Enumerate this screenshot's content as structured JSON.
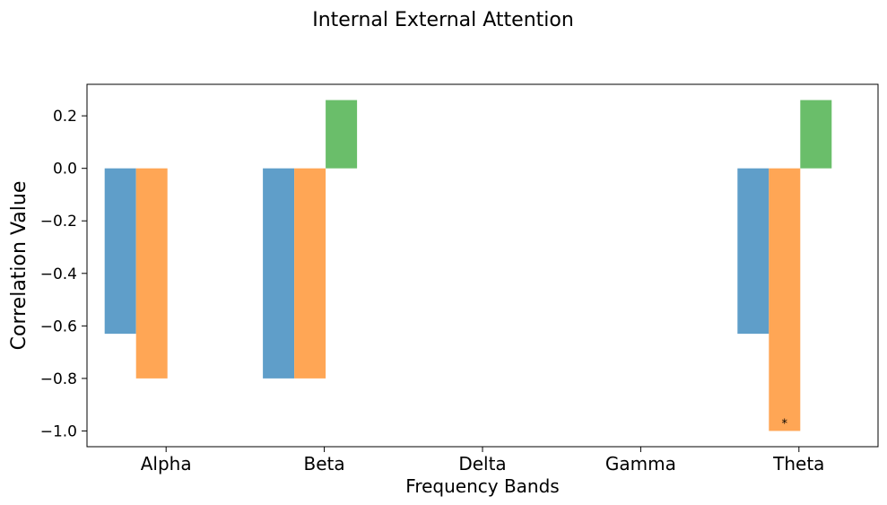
{
  "chart_data": {
    "type": "bar",
    "title": "Internal External Attention",
    "xlabel": "Frequency Bands",
    "ylabel": "Correlation Value",
    "categories": [
      "Alpha",
      "Beta",
      "Delta",
      "Gamma",
      "Theta"
    ],
    "ylim": [
      -1.06,
      0.32
    ],
    "yticks": [
      -1.0,
      -0.8,
      -0.6,
      -0.4,
      -0.2,
      0.0,
      0.2
    ],
    "ytick_labels": [
      "−1.0",
      "−0.8",
      "−0.6",
      "−0.4",
      "−0.2",
      "0.0",
      "0.2"
    ],
    "grid": false,
    "series": [
      {
        "color": "#5f9ec9",
        "values": [
          -0.63,
          -0.8,
          null,
          null,
          -0.63
        ]
      },
      {
        "color": "#ffa655",
        "values": [
          -0.8,
          -0.8,
          null,
          null,
          -1.0
        ]
      },
      {
        "color": "#6abe6a",
        "values": [
          null,
          0.26,
          null,
          null,
          0.26
        ]
      }
    ],
    "annotations": [
      {
        "category": "Theta",
        "series_index": 1,
        "y": -0.97,
        "text": "*"
      }
    ]
  }
}
